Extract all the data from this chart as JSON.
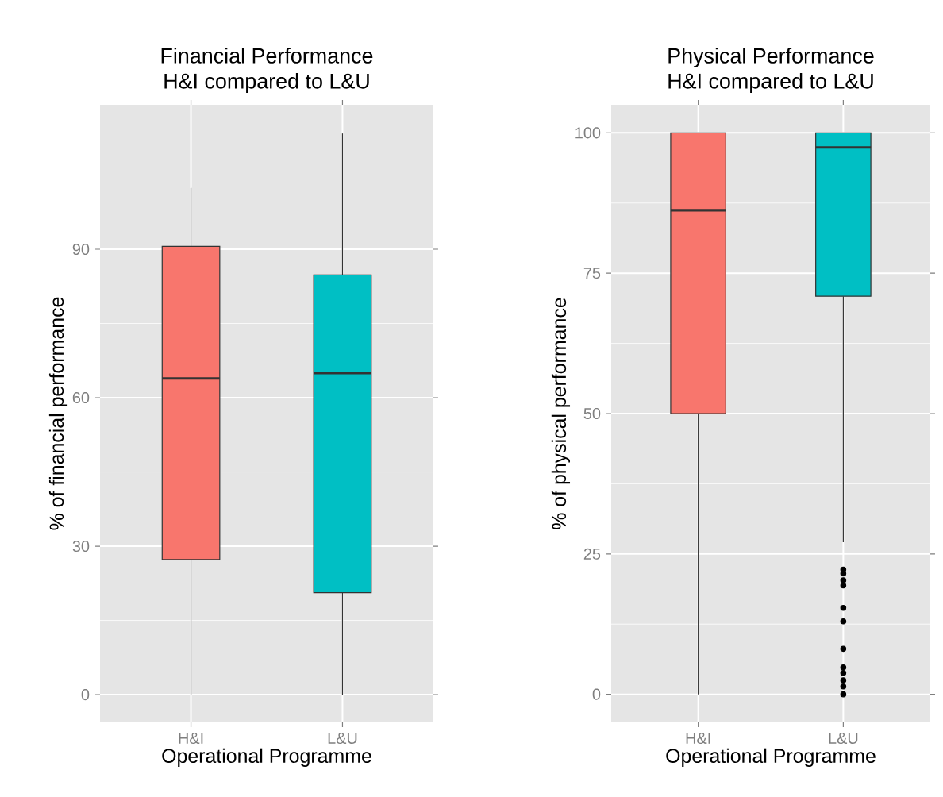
{
  "chart_data": [
    {
      "type": "box",
      "title": "Financial Performance",
      "subtitle": "H&I compared to L&U",
      "xlabel": "Operational Programme",
      "ylabel": "% of financial performance",
      "categories": [
        "H&I",
        "L&U"
      ],
      "colors": [
        "#f8766d",
        "#00bfc4"
      ],
      "boxes": [
        {
          "low": 0,
          "q1": 27.3,
          "median": 63.9,
          "q3": 90.6,
          "high": 102.4
        },
        {
          "low": 0,
          "q1": 20.6,
          "median": 65,
          "q3": 84.8,
          "high": 113.4
        }
      ],
      "ylim": [
        -5.6,
        119.2
      ],
      "yticks": [
        0,
        30,
        60,
        90
      ],
      "grid": true
    },
    {
      "type": "box",
      "title": "Physical Performance",
      "subtitle": "H&I compared to L&U",
      "xlabel": "Operational Programme",
      "ylabel": "% of physical performance",
      "categories": [
        "H&I",
        "L&U"
      ],
      "colors": [
        "#f8766d",
        "#00bfc4"
      ],
      "boxes": [
        {
          "low": 0,
          "q1": 50,
          "median": 86.2,
          "q3": 100,
          "high": 100
        },
        {
          "low": 27.1,
          "q1": 70.9,
          "median": 97.4,
          "q3": 100,
          "high": 100,
          "outliers": [
            22.2,
            21.5,
            20.3,
            19.4,
            15.4,
            13.0,
            8.1,
            4.8,
            3.8,
            2.5,
            1.4,
            0
          ]
        }
      ],
      "ylim": [
        -5,
        105
      ],
      "yticks": [
        0,
        25,
        50,
        75,
        100
      ],
      "grid": true
    }
  ]
}
